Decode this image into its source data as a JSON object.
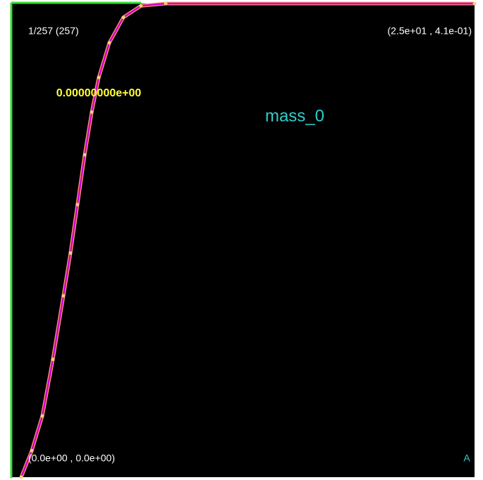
{
  "chart_data": {
    "type": "line",
    "title": "mass_0",
    "frame_label": "1/257 (257)",
    "value_label": "0.00000000e+00",
    "corner_labels": {
      "top_right": "(2.5e+01 , 4.1e-01)",
      "bottom_left": "(0.0e+00 , 0.0e+00)"
    },
    "mode_label": "A",
    "x": [
      0.5,
      1.07,
      1.64,
      2.21,
      2.78,
      3.16,
      3.54,
      3.93,
      4.31,
      4.69,
      5.26,
      6.02,
      6.97,
      8.31,
      25
    ],
    "series": [
      {
        "color": "#cc00cc",
        "marker_color": "#f0d080",
        "values": [
          0,
          0.023,
          0.053,
          0.102,
          0.157,
          0.194,
          0.236,
          0.279,
          0.316,
          0.346,
          0.376,
          0.398,
          0.408,
          0.41,
          0.41
        ]
      }
    ],
    "xlim": [
      0,
      25
    ],
    "ylim": [
      0,
      0.41
    ]
  }
}
